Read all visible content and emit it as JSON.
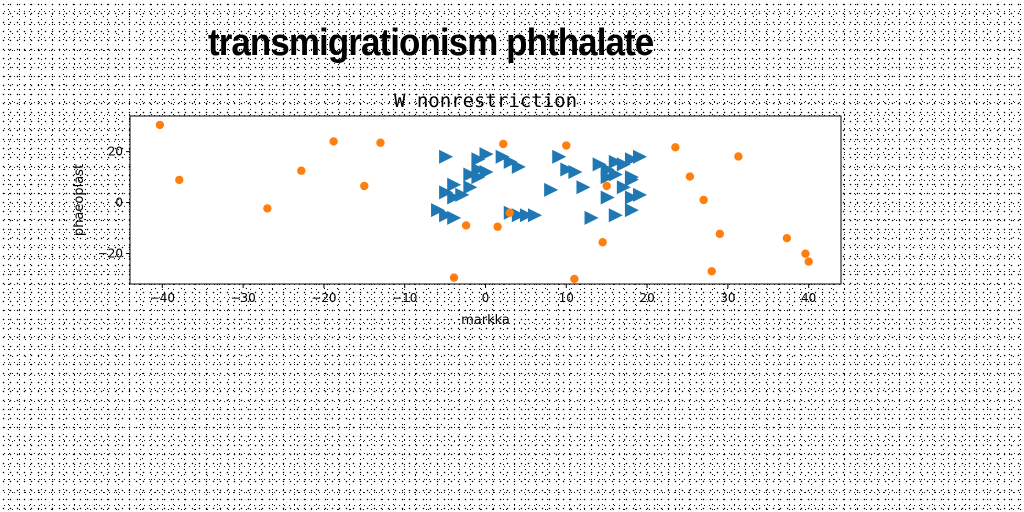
{
  "headline": "transmigrationism phthalate",
  "chart_data": {
    "type": "scatter",
    "title": "W nonrestriction",
    "xlabel": "markka",
    "ylabel": "phaeoplast",
    "xlim": [
      -44,
      44
    ],
    "ylim": [
      -32,
      34
    ],
    "xticks": [
      -40,
      -30,
      -20,
      -10,
      0,
      10,
      20,
      30,
      40
    ],
    "yticks": [
      -20,
      0,
      20
    ],
    "grid": false,
    "series": [
      {
        "marker": "triangle-right",
        "color": "#1f77b4",
        "points": [
          [
            -5,
            18
          ],
          [
            -1,
            17
          ],
          [
            0,
            19
          ],
          [
            2,
            18
          ],
          [
            3,
            16
          ],
          [
            4,
            14
          ],
          [
            -1,
            13
          ],
          [
            0,
            12
          ],
          [
            -2,
            11
          ],
          [
            -1,
            10
          ],
          [
            -4,
            7
          ],
          [
            -2,
            6
          ],
          [
            -5,
            4
          ],
          [
            -3,
            3
          ],
          [
            -4,
            2
          ],
          [
            -6,
            -3
          ],
          [
            -5,
            -5
          ],
          [
            -4,
            -6
          ],
          [
            3,
            -4
          ],
          [
            4,
            -5
          ],
          [
            5,
            -5
          ],
          [
            6,
            -5
          ],
          [
            8,
            5
          ],
          [
            9,
            18
          ],
          [
            10,
            13
          ],
          [
            11,
            12
          ],
          [
            12,
            6
          ],
          [
            14,
            15
          ],
          [
            15,
            13
          ],
          [
            16,
            16
          ],
          [
            17,
            15
          ],
          [
            18,
            17
          ],
          [
            19,
            18
          ],
          [
            15,
            10
          ],
          [
            16,
            11
          ],
          [
            18,
            9
          ],
          [
            18,
            10
          ],
          [
            17,
            6
          ],
          [
            18,
            2
          ],
          [
            19,
            3
          ],
          [
            15,
            2
          ],
          [
            13,
            -6
          ],
          [
            16,
            -5
          ],
          [
            18,
            -3
          ]
        ]
      },
      {
        "marker": "circle",
        "color": "#ff7f0e",
        "points": [
          [
            -40.3,
            30.5
          ],
          [
            -37.9,
            8.9
          ],
          [
            -27,
            -2.3
          ],
          [
            -22.8,
            12.5
          ],
          [
            -18.8,
            24
          ],
          [
            -15,
            6.5
          ],
          [
            -13,
            23.5
          ],
          [
            -3.9,
            -29.5
          ],
          [
            -2.4,
            -9
          ],
          [
            1.5,
            -9.5
          ],
          [
            2.2,
            23
          ],
          [
            3,
            -4
          ],
          [
            10,
            22.4
          ],
          [
            11,
            -30
          ],
          [
            14.5,
            -15.6
          ],
          [
            15,
            6.5
          ],
          [
            23.5,
            21.7
          ],
          [
            25.3,
            10.2
          ],
          [
            27,
            1
          ],
          [
            28,
            -27
          ],
          [
            29,
            -12.3
          ],
          [
            31.3,
            18.1
          ],
          [
            37.3,
            -14
          ],
          [
            39.6,
            -20.1
          ],
          [
            40,
            -23.2
          ]
        ]
      }
    ]
  }
}
